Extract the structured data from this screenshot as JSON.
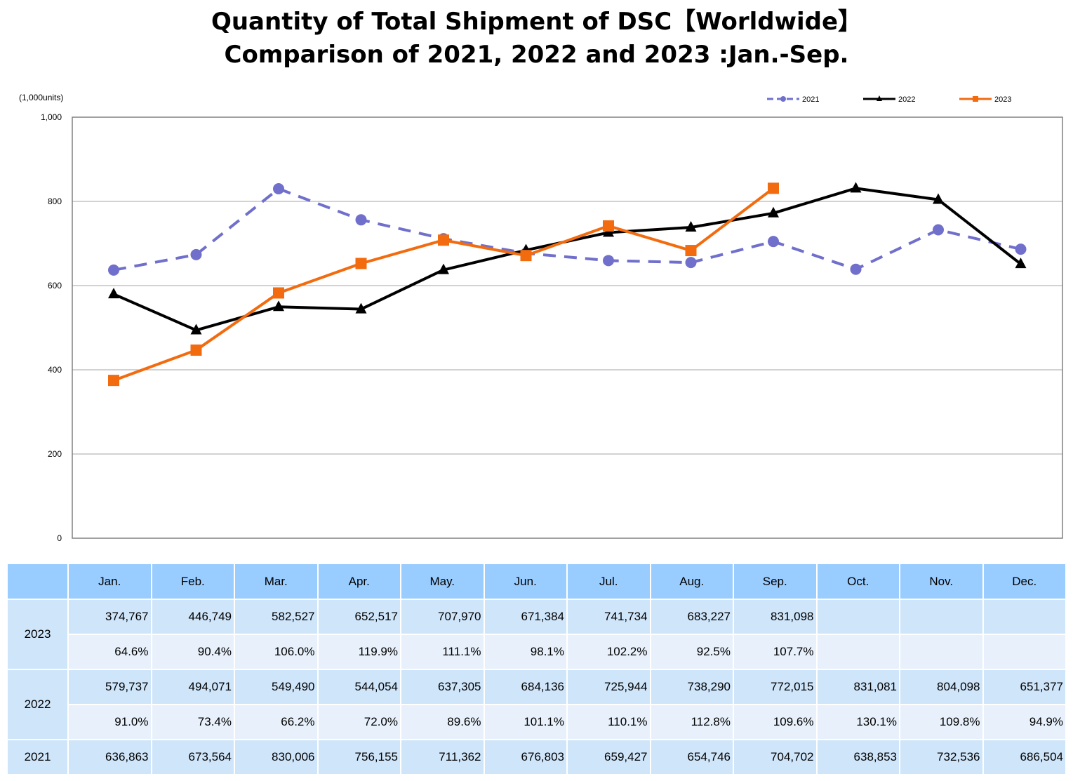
{
  "title": {
    "line1": "Quantity of Total Shipment of DSC【Worldwide】",
    "line2": "Comparison of 2021, 2022 and 2023 :Jan.-Sep."
  },
  "chart_data": {
    "type": "line",
    "unit_label": "(1,000units)",
    "ylim": [
      0,
      1000
    ],
    "yticks": [
      "0",
      "200",
      "400",
      "600",
      "800",
      "1,000"
    ],
    "ytick_values": [
      0,
      200,
      400,
      600,
      800,
      1000
    ],
    "grid": true,
    "legend_position": "top-right",
    "categories": [
      "Jan.",
      "Feb.",
      "Mar.",
      "Apr.",
      "May.",
      "Jun.",
      "Jul.",
      "Aug.",
      "Sep.",
      "Oct.",
      "Nov.",
      "Dec."
    ],
    "series": [
      {
        "name": "2021",
        "color": "#7070cc",
        "style": "dashed",
        "marker": "circle",
        "values": [
          636.863,
          673.564,
          830.006,
          756.155,
          711.362,
          676.803,
          659.427,
          654.746,
          704.702,
          638.853,
          732.536,
          686.504
        ]
      },
      {
        "name": "2022",
        "color": "#000000",
        "style": "solid",
        "marker": "triangle",
        "values": [
          579.737,
          494.071,
          549.49,
          544.054,
          637.305,
          684.136,
          725.944,
          738.29,
          772.015,
          831.081,
          804.098,
          651.377
        ]
      },
      {
        "name": "2023",
        "color": "#f26b0f",
        "style": "solid",
        "marker": "square",
        "values": [
          374.767,
          446.749,
          582.527,
          652.517,
          707.97,
          671.384,
          741.734,
          683.227,
          831.098,
          null,
          null,
          null
        ]
      }
    ]
  },
  "table": {
    "headers": [
      "Jan.",
      "Feb.",
      "Mar.",
      "Apr.",
      "May.",
      "Jun.",
      "Jul.",
      "Aug.",
      "Sep.",
      "Oct.",
      "Nov.",
      "Dec."
    ],
    "rows": [
      {
        "year": "2023",
        "units": [
          "374,767",
          "446,749",
          "582,527",
          "652,517",
          "707,970",
          "671,384",
          "741,734",
          "683,227",
          "831,098",
          "",
          "",
          ""
        ],
        "pct": [
          "64.6%",
          "90.4%",
          "106.0%",
          "119.9%",
          "111.1%",
          "98.1%",
          "102.2%",
          "92.5%",
          "107.7%",
          "",
          "",
          ""
        ]
      },
      {
        "year": "2022",
        "units": [
          "579,737",
          "494,071",
          "549,490",
          "544,054",
          "637,305",
          "684,136",
          "725,944",
          "738,290",
          "772,015",
          "831,081",
          "804,098",
          "651,377"
        ],
        "pct": [
          "91.0%",
          "73.4%",
          "66.2%",
          "72.0%",
          "89.6%",
          "101.1%",
          "110.1%",
          "112.8%",
          "109.6%",
          "130.1%",
          "109.8%",
          "94.9%"
        ]
      },
      {
        "year": "2021",
        "units": [
          "636,863",
          "673,564",
          "830,006",
          "756,155",
          "711,362",
          "676,803",
          "659,427",
          "654,746",
          "704,702",
          "638,853",
          "732,536",
          "686,504"
        ]
      }
    ]
  }
}
